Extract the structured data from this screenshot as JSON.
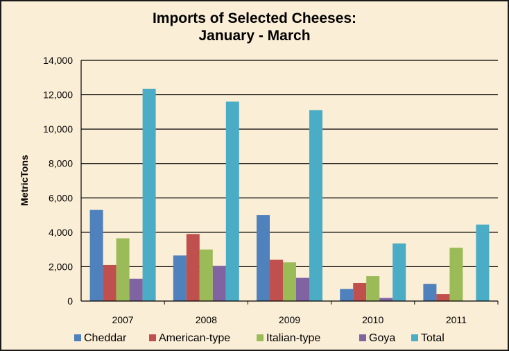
{
  "chart_data": {
    "type": "bar",
    "title_line1": "Imports of Selected Cheeses:",
    "title_line2": "January - March",
    "xlabel": "",
    "ylabel": "MetricTons",
    "ylim": [
      0,
      14000
    ],
    "yticks": [
      "0",
      "2,000",
      "4,000",
      "6,000",
      "8,000",
      "10,000",
      "12,000",
      "14,000"
    ],
    "categories": [
      "2007",
      "2008",
      "2009",
      "2010",
      "2011"
    ],
    "series": [
      {
        "name": "Cheddar",
        "color": "#4f81bd",
        "values": [
          5300,
          2650,
          5000,
          700,
          1000
        ]
      },
      {
        "name": "American-type",
        "color": "#c0504d",
        "values": [
          2100,
          3900,
          2400,
          1050,
          400
        ]
      },
      {
        "name": "Italian-type",
        "color": "#9bbb59",
        "values": [
          3650,
          3000,
          2250,
          1450,
          3100
        ]
      },
      {
        "name": "Goya",
        "color": "#8064a2",
        "values": [
          1300,
          2050,
          1350,
          180,
          0
        ]
      },
      {
        "name": "Total",
        "color": "#4bacc6",
        "values": [
          12350,
          11600,
          11100,
          3350,
          4450
        ]
      }
    ],
    "grid": true,
    "legend_position": "bottom"
  }
}
